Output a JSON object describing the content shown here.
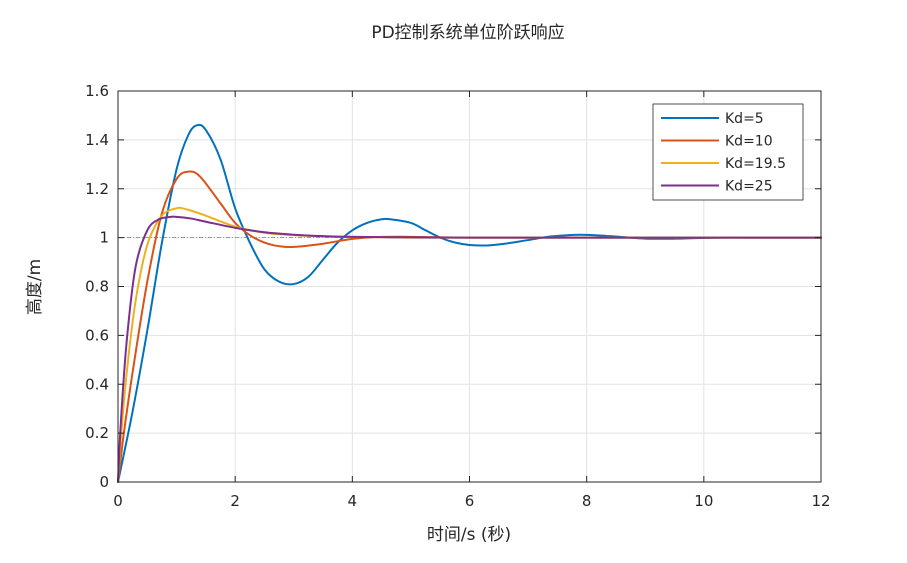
{
  "chart_data": {
    "type": "line",
    "title": "PD控制系统单位阶跃响应",
    "xlabel": "时间/s (秒)",
    "ylabel": "高度/m",
    "xlim": [
      0,
      12
    ],
    "ylim": [
      0,
      1.6
    ],
    "xticks": [
      0,
      2,
      4,
      6,
      8,
      10,
      12
    ],
    "xtick_labels": [
      "0",
      "2",
      "4",
      "6",
      "8",
      "10",
      "12"
    ],
    "yticks": [
      0,
      0.2,
      0.4,
      0.6,
      0.8,
      1,
      1.2,
      1.4,
      1.6
    ],
    "ytick_labels": [
      "0",
      "0.2",
      "0.4",
      "0.6",
      "0.8",
      "1",
      "1.2",
      "1.4",
      "1.6"
    ],
    "grid": true,
    "legend_position": "top-right",
    "reference_line": {
      "y": 1,
      "style": "dash-dot",
      "color": "#7f7f7f"
    },
    "series": [
      {
        "name": "Kd=5",
        "color": "#0072BD",
        "x": [
          0,
          0.25,
          0.5,
          0.75,
          1.0,
          1.2,
          1.35,
          1.5,
          1.75,
          2.0,
          2.25,
          2.5,
          2.75,
          3.0,
          3.25,
          3.5,
          3.75,
          4.0,
          4.25,
          4.5,
          4.65,
          5.0,
          5.25,
          5.5,
          5.75,
          6.0,
          6.3,
          6.6,
          7.0,
          7.4,
          7.9,
          8.4,
          9.0,
          9.6,
          10.2,
          11.0,
          12.0
        ],
        "y": [
          0,
          0.29,
          0.62,
          0.98,
          1.28,
          1.42,
          1.46,
          1.44,
          1.32,
          1.12,
          0.98,
          0.87,
          0.82,
          0.81,
          0.84,
          0.91,
          0.98,
          1.03,
          1.06,
          1.075,
          1.075,
          1.06,
          1.03,
          1.0,
          0.98,
          0.97,
          0.968,
          0.975,
          0.99,
          1.005,
          1.012,
          1.006,
          0.996,
          0.996,
          1.0,
          1.0,
          1.0
        ]
      },
      {
        "name": "Kd=10",
        "color": "#D95319",
        "x": [
          0,
          0.1,
          0.25,
          0.5,
          0.75,
          1.0,
          1.2,
          1.4,
          1.75,
          2.0,
          2.25,
          2.5,
          2.75,
          3.0,
          3.5,
          4.0,
          4.5,
          5.0,
          6.0,
          8.0,
          10.0,
          12.0
        ],
        "y": [
          0,
          0.2,
          0.45,
          0.82,
          1.1,
          1.24,
          1.27,
          1.25,
          1.14,
          1.06,
          1.01,
          0.98,
          0.965,
          0.962,
          0.975,
          0.995,
          1.003,
          1.003,
          1.0,
          1.0,
          1.0,
          1.0
        ]
      },
      {
        "name": "Kd=19.5",
        "color": "#EDB120",
        "x": [
          0,
          0.05,
          0.15,
          0.3,
          0.5,
          0.75,
          1.0,
          1.1,
          1.25,
          1.5,
          2.0,
          2.5,
          3.0,
          3.5,
          4.0,
          5.0,
          6.0,
          8.0,
          10.0,
          12.0
        ],
        "y": [
          0,
          0.18,
          0.45,
          0.74,
          0.97,
          1.09,
          1.12,
          1.12,
          1.11,
          1.09,
          1.045,
          1.02,
          1.01,
          1.005,
          1.003,
          1.0,
          1.0,
          1.0,
          1.0,
          1.0
        ]
      },
      {
        "name": "Kd=25",
        "color": "#7E2F8E",
        "x": [
          0,
          0.05,
          0.15,
          0.3,
          0.5,
          0.7,
          0.9,
          1.0,
          1.25,
          1.5,
          2.0,
          2.5,
          3.0,
          3.5,
          4.0,
          5.0,
          6.0,
          8.0,
          10.0,
          12.0
        ],
        "y": [
          0,
          0.25,
          0.58,
          0.88,
          1.03,
          1.075,
          1.085,
          1.085,
          1.078,
          1.065,
          1.04,
          1.022,
          1.012,
          1.006,
          1.003,
          1.001,
          1.0,
          1.0,
          1.0,
          1.0
        ]
      }
    ]
  }
}
